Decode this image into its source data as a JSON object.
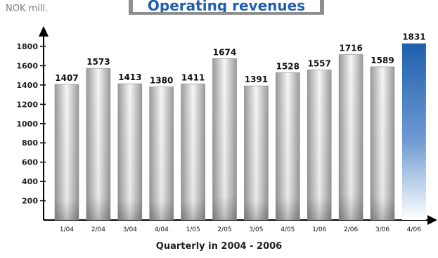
{
  "chart_data": {
    "type": "bar",
    "title": "Operating revenues",
    "ylabel": "NOK mill.",
    "xlabel": "Quarterly in 2004 - 2006",
    "categories": [
      "1/04",
      "2/04",
      "3/04",
      "4/04",
      "1/05",
      "2/05",
      "3/05",
      "4/05",
      "1/06",
      "2/06",
      "3/06",
      "4/06"
    ],
    "values": [
      1407,
      1573,
      1413,
      1380,
      1411,
      1674,
      1391,
      1528,
      1557,
      1716,
      1589,
      1831
    ],
    "yticks": [
      200,
      400,
      600,
      800,
      1000,
      1200,
      1400,
      1600,
      1800
    ],
    "ylim": [
      0,
      1900
    ],
    "grid": false,
    "highlight_index": 11,
    "colors": {
      "bar": "#b5b5b5",
      "highlight": "#1f5fae",
      "title": "#1f5fae",
      "axis": "#000000"
    }
  }
}
